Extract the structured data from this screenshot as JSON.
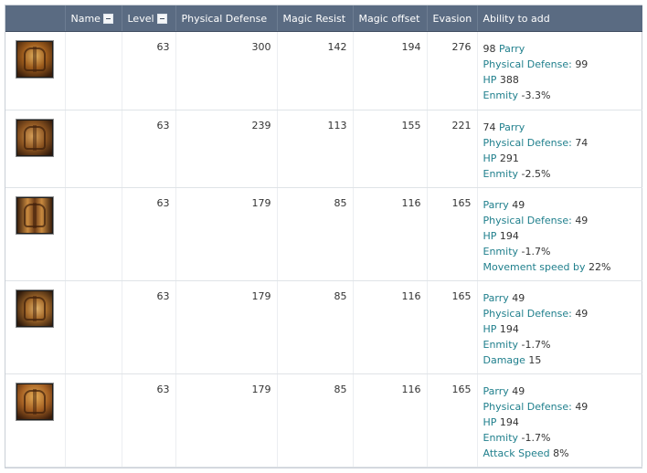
{
  "columns": {
    "icon": "",
    "name": "Name",
    "level": "Level",
    "physical_defense": "Physical Defense",
    "magic_resist": "Magic Resist",
    "magic_offset": "Magic offset",
    "evasion": "Evasion",
    "ability": "Ability to add"
  },
  "rows": [
    {
      "icon": "chest-armor-icon",
      "level": "63",
      "physical_defense": "300",
      "magic_resist": "142",
      "magic_offset": "194",
      "evasion": "276",
      "ability": [
        {
          "value": "98",
          "stat": "Parry"
        },
        {
          "stat": "Physical Defense:",
          "value": "99"
        },
        {
          "stat": "HP",
          "value": "388"
        },
        {
          "stat": "Enmity",
          "value": "-3.3%"
        }
      ]
    },
    {
      "icon": "gloves-armor-icon",
      "level": "63",
      "physical_defense": "239",
      "magic_resist": "113",
      "magic_offset": "155",
      "evasion": "221",
      "ability": [
        {
          "value": "74",
          "stat": "Parry"
        },
        {
          "stat": "Physical Defense:",
          "value": "74"
        },
        {
          "stat": "HP",
          "value": "291"
        },
        {
          "stat": "Enmity",
          "value": "-2.5%"
        }
      ]
    },
    {
      "icon": "boots-armor-icon",
      "level": "63",
      "physical_defense": "179",
      "magic_resist": "85",
      "magic_offset": "116",
      "evasion": "165",
      "ability": [
        {
          "stat": "Parry",
          "value": "49"
        },
        {
          "stat": "Physical Defense:",
          "value": "49"
        },
        {
          "stat": "HP",
          "value": "194"
        },
        {
          "stat": "Enmity",
          "value": "-1.7%"
        },
        {
          "stat": "Movement speed by",
          "value": "22%"
        }
      ]
    },
    {
      "icon": "gauntlet-armor-icon",
      "level": "63",
      "physical_defense": "179",
      "magic_resist": "85",
      "magic_offset": "116",
      "evasion": "165",
      "ability": [
        {
          "stat": "Parry",
          "value": "49"
        },
        {
          "stat": "Physical Defense:",
          "value": "49"
        },
        {
          "stat": "HP",
          "value": "194"
        },
        {
          "stat": "Enmity",
          "value": "-1.7%"
        },
        {
          "stat": "Damage",
          "value": "15"
        }
      ]
    },
    {
      "icon": "shoulder-armor-icon",
      "level": "63",
      "physical_defense": "179",
      "magic_resist": "85",
      "magic_offset": "116",
      "evasion": "165",
      "ability": [
        {
          "stat": "Parry",
          "value": "49"
        },
        {
          "stat": "Physical Defense:",
          "value": "49"
        },
        {
          "stat": "HP",
          "value": "194"
        },
        {
          "stat": "Enmity",
          "value": "-1.7%"
        },
        {
          "stat": "Attack Speed",
          "value": "8%"
        }
      ]
    }
  ]
}
